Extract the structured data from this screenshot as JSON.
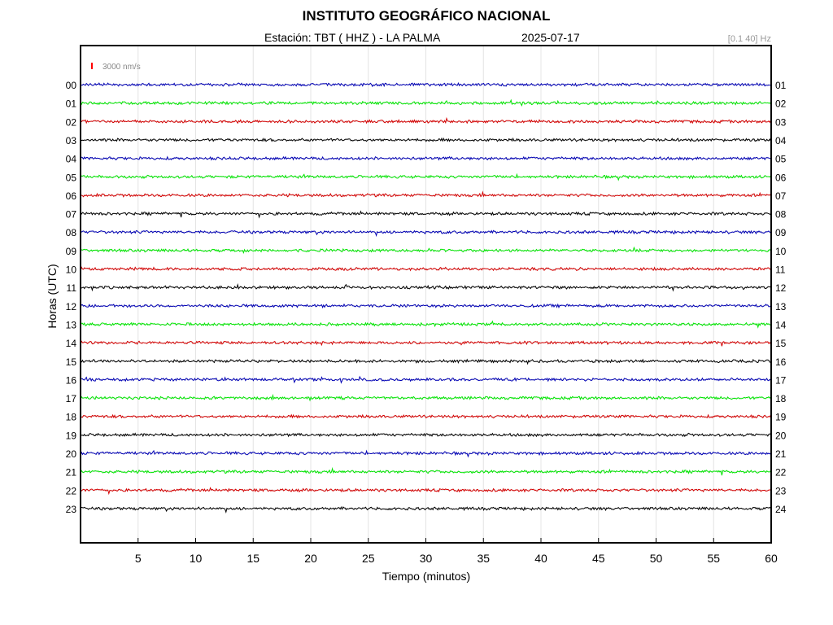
{
  "title": "INSTITUTO GEOGRÁFICO NACIONAL",
  "station": "Estación:  TBT ( HHZ ) - LA PALMA",
  "date": "2025-07-17",
  "filter": "[0.1 40] Hz",
  "scale_label": "3000 nm/s",
  "chart_data": {
    "type": "line",
    "title": "INSTITUTO GEOGRÁFICO NACIONAL",
    "xlabel": "Tiempo (minutos)",
    "ylabel": "Horas (UTC)",
    "xlim": [
      0,
      60
    ],
    "x_ticks": [
      "5",
      "10",
      "15",
      "20",
      "25",
      "30",
      "35",
      "40",
      "45",
      "50",
      "55",
      "60"
    ],
    "left_labels": [
      "00",
      "01",
      "02",
      "03",
      "04",
      "05",
      "06",
      "07",
      "08",
      "09",
      "10",
      "11",
      "12",
      "13",
      "14",
      "15",
      "16",
      "17",
      "18",
      "19",
      "20",
      "21",
      "22",
      "23"
    ],
    "right_labels": [
      "01",
      "02",
      "03",
      "04",
      "05",
      "06",
      "07",
      "08",
      "09",
      "10",
      "11",
      "12",
      "13",
      "14",
      "15",
      "16",
      "17",
      "18",
      "19",
      "20",
      "21",
      "22",
      "23",
      "24"
    ],
    "trace_colors": [
      "#0000b4",
      "#00e600",
      "#d40000",
      "#000000"
    ],
    "scale_bar_color": "#ff0000",
    "grid": true,
    "series": [
      {
        "hour": "00",
        "color": "#0000b4"
      },
      {
        "hour": "01",
        "color": "#00e600"
      },
      {
        "hour": "02",
        "color": "#d40000"
      },
      {
        "hour": "03",
        "color": "#000000"
      },
      {
        "hour": "04",
        "color": "#0000b4"
      },
      {
        "hour": "05",
        "color": "#00e600"
      },
      {
        "hour": "06",
        "color": "#d40000"
      },
      {
        "hour": "07",
        "color": "#000000"
      },
      {
        "hour": "08",
        "color": "#0000b4"
      },
      {
        "hour": "09",
        "color": "#00e600"
      },
      {
        "hour": "10",
        "color": "#d40000"
      },
      {
        "hour": "11",
        "color": "#000000"
      },
      {
        "hour": "12",
        "color": "#0000b4"
      },
      {
        "hour": "13",
        "color": "#00e600"
      },
      {
        "hour": "14",
        "color": "#d40000"
      },
      {
        "hour": "15",
        "color": "#000000"
      },
      {
        "hour": "16",
        "color": "#0000b4"
      },
      {
        "hour": "17",
        "color": "#00e600"
      },
      {
        "hour": "18",
        "color": "#d40000"
      },
      {
        "hour": "19",
        "color": "#000000"
      },
      {
        "hour": "20",
        "color": "#0000b4"
      },
      {
        "hour": "21",
        "color": "#00e600"
      },
      {
        "hour": "22",
        "color": "#d40000"
      },
      {
        "hour": "23",
        "color": "#000000"
      }
    ]
  }
}
